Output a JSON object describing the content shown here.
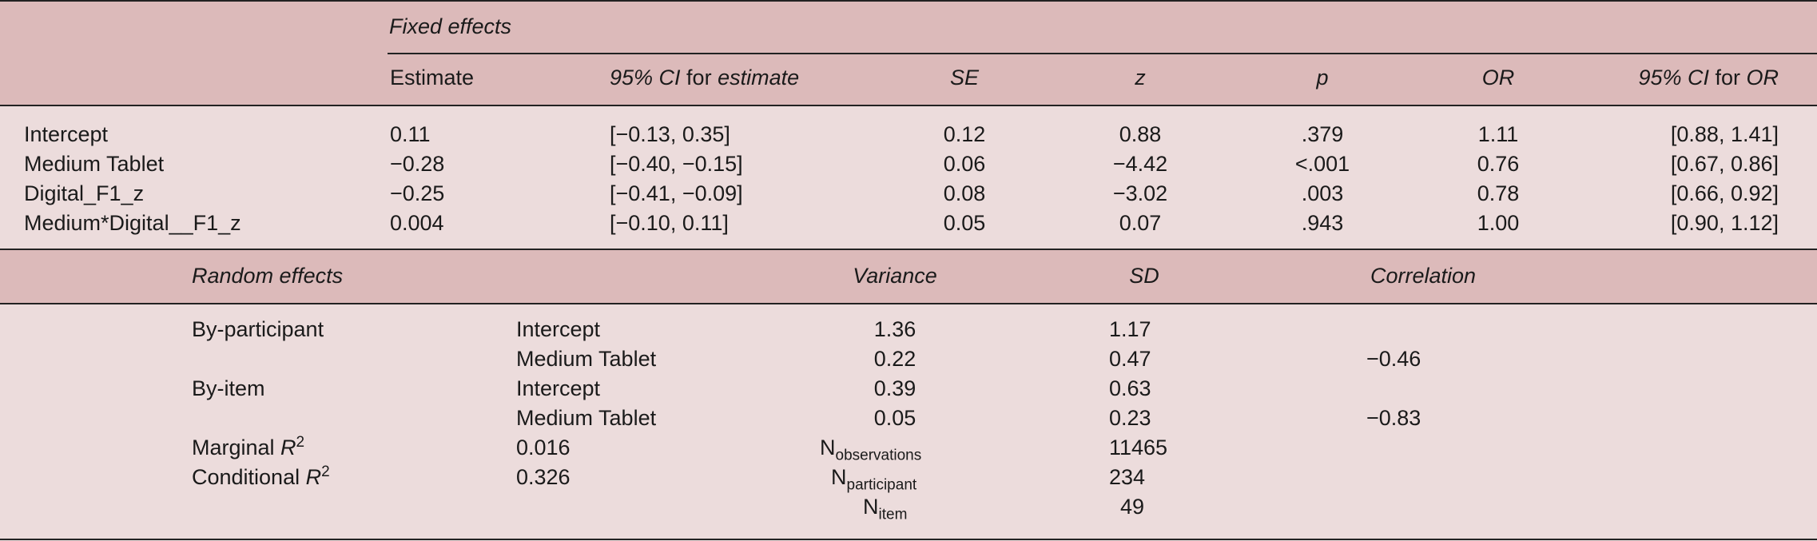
{
  "fixed": {
    "section_label": "Fixed effects",
    "headers": {
      "estimate": "Estimate",
      "ci_est_italic": "95% CI",
      "ci_est_rest": " for ",
      "ci_est_tail": "estimate",
      "se": "SE",
      "z": "z",
      "p": "p",
      "or": "OR",
      "ci_or_lead": "95% CI",
      "ci_or_mid": " for ",
      "ci_or_tail": "OR"
    },
    "rows": [
      {
        "term": "Intercept",
        "estimate": "0.11",
        "ci": "[−0.13, 0.35]",
        "se": "0.12",
        "z": "0.88",
        "p": ".379",
        "or": "1.11",
        "ci_or": "[0.88, 1.41]"
      },
      {
        "term": "Medium Tablet",
        "estimate": "−0.28",
        "ci": "[−0.40, −0.15]",
        "se": "0.06",
        "z": "−4.42",
        "p": "<.001",
        "or": "0.76",
        "ci_or": "[0.67, 0.86]"
      },
      {
        "term": "Digital_F1_z",
        "estimate": "−0.25",
        "ci": "[−0.41, −0.09]",
        "se": "0.08",
        "z": "−3.02",
        "p": ".003",
        "or": "0.78",
        "ci_or": "[0.66, 0.92]"
      },
      {
        "term": "Medium*Digital__F1_z",
        "estimate": "0.004",
        "ci": "[−0.10, 0.11]",
        "se": "0.05",
        "z": "0.07",
        "p": ".943",
        "or": "1.00",
        "ci_or": "[0.90, 1.12]"
      }
    ]
  },
  "random": {
    "headers": {
      "label": "Random effects",
      "variance": "Variance",
      "sd": "SD",
      "correlation": "Correlation"
    },
    "rows": [
      {
        "group": "By-participant",
        "effect": "Intercept",
        "variance": "1.36",
        "sd": "1.17",
        "corr": ""
      },
      {
        "group": "",
        "effect": "Medium Tablet",
        "variance": "0.22",
        "sd": "0.47",
        "corr": "−0.46"
      },
      {
        "group": "By-item",
        "effect": "Intercept",
        "variance": "0.39",
        "sd": "0.63",
        "corr": ""
      },
      {
        "group": "",
        "effect": "Medium Tablet",
        "variance": "0.05",
        "sd": "0.23",
        "corr": "−0.83"
      }
    ],
    "stats": {
      "marginal_label": "Marginal ",
      "conditional_label": "Conditional ",
      "r_symbol": "R",
      "r_power": "2",
      "marginal_value": "0.016",
      "conditional_value": "0.326",
      "n_symbol": "N",
      "n_obs_sub": "observations",
      "n_obs_value": "11465",
      "n_part_sub": "participant",
      "n_part_value": "234",
      "n_item_sub": "item",
      "n_item_value": "49"
    }
  }
}
